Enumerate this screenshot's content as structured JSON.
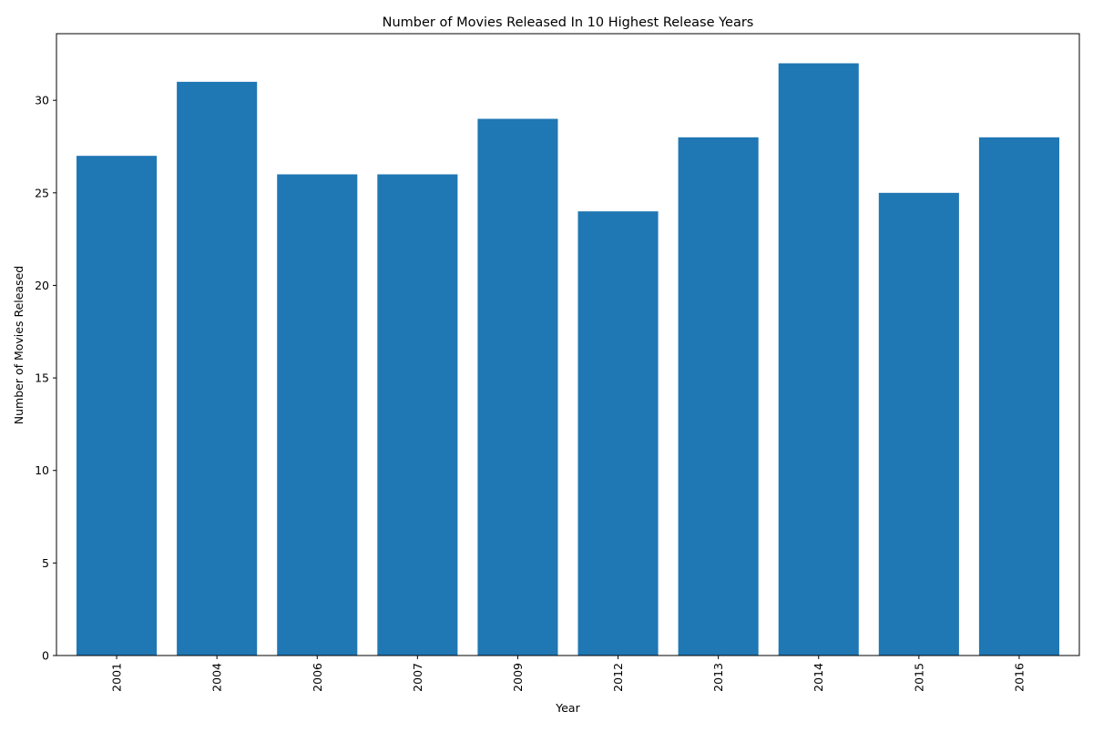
{
  "chart_data": {
    "type": "bar",
    "title": "Number of Movies Released In 10 Highest Release Years",
    "xlabel": "Year",
    "ylabel": "Number of Movies Released",
    "categories": [
      "2001",
      "2004",
      "2006",
      "2007",
      "2009",
      "2012",
      "2013",
      "2014",
      "2015",
      "2016"
    ],
    "values": [
      27,
      31,
      26,
      26,
      29,
      24,
      28,
      32,
      25,
      28
    ],
    "ylim": [
      0,
      33.6
    ],
    "yticks": [
      0,
      5,
      10,
      15,
      20,
      25,
      30
    ],
    "xtick_rotation": "vertical",
    "grid": false,
    "legend": "none",
    "bar_color": "#1f77b4"
  }
}
